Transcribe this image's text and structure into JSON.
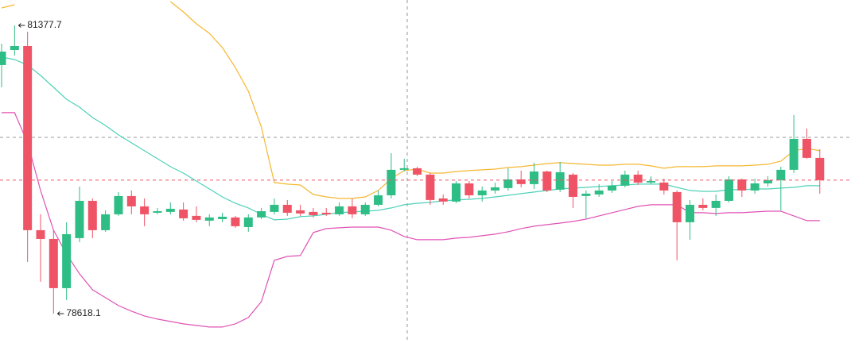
{
  "chart_data": {
    "type": "candlestick",
    "up_color": "#2ebd85",
    "down_color": "#ef5466",
    "open": [
      80998,
      81142,
      81180,
      79417,
      79333,
      78862,
      79341,
      79698,
      79417,
      79569,
      79744,
      79645,
      79584,
      79592,
      79615,
      79554,
      79508,
      79523,
      79539,
      79447,
      79539,
      79592,
      79660,
      79607,
      79592,
      79584,
      79569,
      79645,
      79569,
      79660,
      79751,
      79995,
      80010,
      79949,
      79721,
      79691,
      79865,
      79751,
      79797,
      79820,
      79903,
      79858,
      79979,
      79805,
      79949,
      79744,
      79759,
      79797,
      79843,
      79949,
      79873,
      79873,
      79782,
      79493,
      79660,
      79630,
      79698,
      79903,
      79797,
      79865,
      79896,
      79995,
      80291,
      80109
    ],
    "high": [
      81203,
      81377.7,
      81317,
      79569,
      79417,
      79493,
      79835,
      79721,
      79607,
      79782,
      79797,
      79721,
      79630,
      79683,
      79683,
      79645,
      79569,
      79584,
      79554,
      79569,
      79630,
      79721,
      79706,
      79660,
      79630,
      79630,
      79683,
      79721,
      79683,
      79797,
      80154,
      80101,
      80025,
      79964,
      79759,
      79888,
      79888,
      79835,
      79873,
      80010,
      79987,
      80063,
      79987,
      80071,
      79964,
      79797,
      79858,
      79888,
      79987,
      79987,
      79934,
      79911,
      79797,
      79706,
      79721,
      79759,
      79934,
      79911,
      79911,
      79934,
      80025,
      80519,
      80390,
      80192
    ],
    "low": [
      80785,
      81089,
      79113,
      78923,
      78618.1,
      78748,
      79303,
      79341,
      79402,
      79554,
      79569,
      79455,
      79569,
      79569,
      79508,
      79493,
      79455,
      79493,
      79440,
      79402,
      79523,
      79569,
      79554,
      79554,
      79539,
      79554,
      79554,
      79531,
      79554,
      79645,
      79721,
      79979,
      79934,
      79660,
      79660,
      79675,
      79721,
      79691,
      79767,
      79797,
      79827,
      79812,
      79782,
      79782,
      79630,
      79531,
      79736,
      79774,
      79827,
      79850,
      79858,
      79759,
      79128,
      79326,
      79607,
      79554,
      79683,
      79736,
      79767,
      79835,
      79607,
      79964,
      80101,
      79767
    ],
    "close": [
      81127,
      81180,
      79417,
      79333,
      78862,
      79379,
      79698,
      79417,
      79569,
      79744,
      79645,
      79569,
      79599,
      79622,
      79531,
      79516,
      79539,
      79546,
      79455,
      79539,
      79599,
      79660,
      79584,
      79577,
      79561,
      79569,
      79645,
      79569,
      79660,
      79751,
      79995,
      80010,
      79949,
      79706,
      79691,
      79865,
      79751,
      79797,
      79827,
      79903,
      79858,
      79979,
      79797,
      79972,
      79736,
      79767,
      79797,
      79843,
      79949,
      79873,
      79888,
      79797,
      79493,
      79660,
      79630,
      79698,
      79903,
      79797,
      79865,
      79896,
      79995,
      80291,
      80109,
      79896
    ],
    "bands": [
      {
        "color": "#f5b731",
        "values": [
          81545,
          81575,
          null,
          null,
          null,
          null,
          null,
          null,
          null,
          null,
          null,
          null,
          null,
          81606,
          81507,
          81393,
          81302,
          81165,
          80975,
          80747,
          80405,
          79873,
          79858,
          79850,
          79759,
          79736,
          79721,
          79721,
          79736,
          79797,
          79911,
          79987,
          80002,
          79964,
          79964,
          79979,
          79987,
          79995,
          80002,
          80017,
          80025,
          80040,
          80055,
          80063,
          80055,
          80048,
          80040,
          80040,
          80048,
          80048,
          80033,
          80010,
          80025,
          80025,
          80025,
          80033,
          80033,
          80033,
          80040,
          80048,
          80078,
          80177,
          80200,
          80177
        ]
      },
      {
        "color": "#4fd1b8",
        "values": [
          81074,
          81051,
          80998,
          80899,
          80785,
          80671,
          80595,
          80496,
          80420,
          80329,
          80253,
          80177,
          80101,
          80025,
          79964,
          79888,
          79812,
          79736,
          79675,
          79630,
          79569,
          79516,
          79523,
          79546,
          79554,
          79569,
          79584,
          79592,
          79599,
          79607,
          79630,
          79660,
          79675,
          79683,
          79698,
          79706,
          79713,
          79721,
          79736,
          79751,
          79767,
          79782,
          79797,
          79812,
          79820,
          79827,
          79835,
          79843,
          79850,
          79858,
          79858,
          79858,
          79827,
          79797,
          79789,
          79789,
          79805,
          79805,
          79812,
          79812,
          79820,
          79827,
          79843,
          79843
        ]
      },
      {
        "color": "#e052b5",
        "values": [
          80542,
          80542,
          80253,
          79797,
          79417,
          79189,
          78999,
          78847,
          78771,
          78695,
          78642,
          78596,
          78566,
          78543,
          78520,
          78505,
          78490,
          78490,
          78520,
          78581,
          78733,
          79128,
          79166,
          79174,
          79394,
          79432,
          79440,
          79447,
          79447,
          79447,
          79417,
          79356,
          79326,
          79326,
          79326,
          79341,
          79349,
          79364,
          79379,
          79402,
          79432,
          79455,
          79470,
          79485,
          79501,
          79523,
          79554,
          79584,
          79615,
          79645,
          79660,
          79660,
          79660,
          79584,
          79584,
          79577,
          79584,
          79584,
          79592,
          79599,
          79599,
          79554,
          79508,
          79508
        ]
      }
    ]
  }
}
